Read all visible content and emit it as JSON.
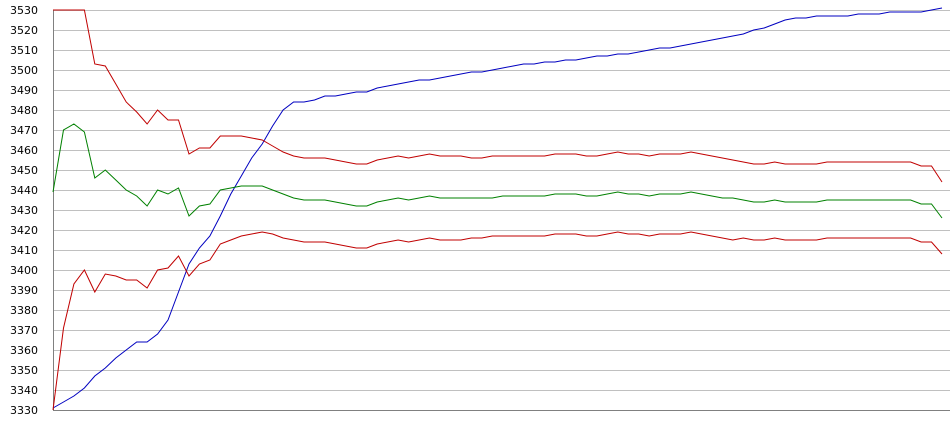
{
  "chart_data": {
    "type": "line",
    "title": "",
    "xlabel": "",
    "ylabel": "",
    "ylim": [
      3330,
      3530
    ],
    "yticks": [
      3330,
      3340,
      3350,
      3360,
      3370,
      3380,
      3390,
      3400,
      3410,
      3420,
      3430,
      3440,
      3450,
      3460,
      3470,
      3480,
      3490,
      3500,
      3510,
      3520,
      3530
    ],
    "grid": "horizontal",
    "legend": "none",
    "x": [
      0,
      1,
      2,
      3,
      4,
      5,
      6,
      7,
      8,
      9,
      10,
      11,
      12,
      13,
      14,
      15,
      16,
      17,
      18,
      19,
      20,
      21,
      22,
      23,
      24,
      25,
      26,
      27,
      28,
      29,
      30,
      31,
      32,
      33,
      34,
      35,
      36,
      37,
      38,
      39,
      40,
      41,
      42,
      43,
      44,
      45,
      46,
      47,
      48,
      49,
      50,
      51,
      52,
      53,
      54,
      55,
      56,
      57,
      58,
      59,
      60,
      61,
      62,
      63,
      64,
      65,
      66,
      67,
      68,
      69,
      70,
      71,
      72,
      73,
      74,
      75,
      76,
      77,
      78,
      79,
      80,
      81,
      82,
      83,
      84,
      85
    ],
    "series": [
      {
        "color": "#0000c0",
        "values": [
          3331,
          3334,
          3337,
          3341,
          3347,
          3351,
          3356,
          3360,
          3364,
          3364,
          3368,
          3375,
          3389,
          3403,
          3411,
          3417,
          3427,
          3438,
          3447,
          3456,
          3463,
          3472,
          3480,
          3484,
          3484,
          3485,
          3487,
          3487,
          3488,
          3489,
          3489,
          3491,
          3492,
          3493,
          3494,
          3495,
          3495,
          3496,
          3497,
          3498,
          3499,
          3499,
          3500,
          3501,
          3502,
          3503,
          3503,
          3504,
          3504,
          3505,
          3505,
          3506,
          3507,
          3507,
          3508,
          3508,
          3509,
          3510,
          3511,
          3511,
          3512,
          3513,
          3514,
          3515,
          3516,
          3517,
          3518,
          3520,
          3521,
          3523,
          3525,
          3526,
          3526,
          3527,
          3527,
          3527,
          3527,
          3528,
          3528,
          3528,
          3529,
          3529,
          3529,
          3529,
          3530,
          3531
        ]
      },
      {
        "color": "#c00000",
        "values": [
          3530,
          3530,
          3530,
          3530,
          3503,
          3502,
          3493,
          3484,
          3479,
          3473,
          3480,
          3475,
          3475,
          3458,
          3461,
          3461,
          3467,
          3467,
          3467,
          3466,
          3465,
          3462,
          3459,
          3457,
          3456,
          3456,
          3456,
          3455,
          3454,
          3453,
          3453,
          3455,
          3456,
          3457,
          3456,
          3457,
          3458,
          3457,
          3457,
          3457,
          3456,
          3456,
          3457,
          3457,
          3457,
          3457,
          3457,
          3457,
          3458,
          3458,
          3458,
          3457,
          3457,
          3458,
          3459,
          3458,
          3458,
          3457,
          3458,
          3458,
          3458,
          3459,
          3458,
          3457,
          3456,
          3455,
          3454,
          3453,
          3453,
          3454,
          3453,
          3453,
          3453,
          3453,
          3454,
          3454,
          3454,
          3454,
          3454,
          3454,
          3454,
          3454,
          3454,
          3452,
          3452,
          3444
        ]
      },
      {
        "color": "#008000",
        "values": [
          3439,
          3470,
          3473,
          3469,
          3446,
          3450,
          3445,
          3440,
          3437,
          3432,
          3440,
          3438,
          3441,
          3427,
          3432,
          3433,
          3440,
          3441,
          3442,
          3442,
          3442,
          3440,
          3438,
          3436,
          3435,
          3435,
          3435,
          3434,
          3433,
          3432,
          3432,
          3434,
          3435,
          3436,
          3435,
          3436,
          3437,
          3436,
          3436,
          3436,
          3436,
          3436,
          3436,
          3437,
          3437,
          3437,
          3437,
          3437,
          3438,
          3438,
          3438,
          3437,
          3437,
          3438,
          3439,
          3438,
          3438,
          3437,
          3438,
          3438,
          3438,
          3439,
          3438,
          3437,
          3436,
          3436,
          3435,
          3434,
          3434,
          3435,
          3434,
          3434,
          3434,
          3434,
          3435,
          3435,
          3435,
          3435,
          3435,
          3435,
          3435,
          3435,
          3435,
          3433,
          3433,
          3426
        ]
      },
      {
        "color": "#c00000",
        "values": [
          3330,
          3371,
          3393,
          3400,
          3389,
          3398,
          3397,
          3395,
          3395,
          3391,
          3400,
          3401,
          3407,
          3397,
          3403,
          3405,
          3413,
          3415,
          3417,
          3418,
          3419,
          3418,
          3416,
          3415,
          3414,
          3414,
          3414,
          3413,
          3412,
          3411,
          3411,
          3413,
          3414,
          3415,
          3414,
          3415,
          3416,
          3415,
          3415,
          3415,
          3416,
          3416,
          3417,
          3417,
          3417,
          3417,
          3417,
          3417,
          3418,
          3418,
          3418,
          3417,
          3417,
          3418,
          3419,
          3418,
          3418,
          3417,
          3418,
          3418,
          3418,
          3419,
          3418,
          3417,
          3416,
          3415,
          3416,
          3415,
          3415,
          3416,
          3415,
          3415,
          3415,
          3415,
          3416,
          3416,
          3416,
          3416,
          3416,
          3416,
          3416,
          3416,
          3416,
          3414,
          3414,
          3408
        ]
      }
    ]
  }
}
